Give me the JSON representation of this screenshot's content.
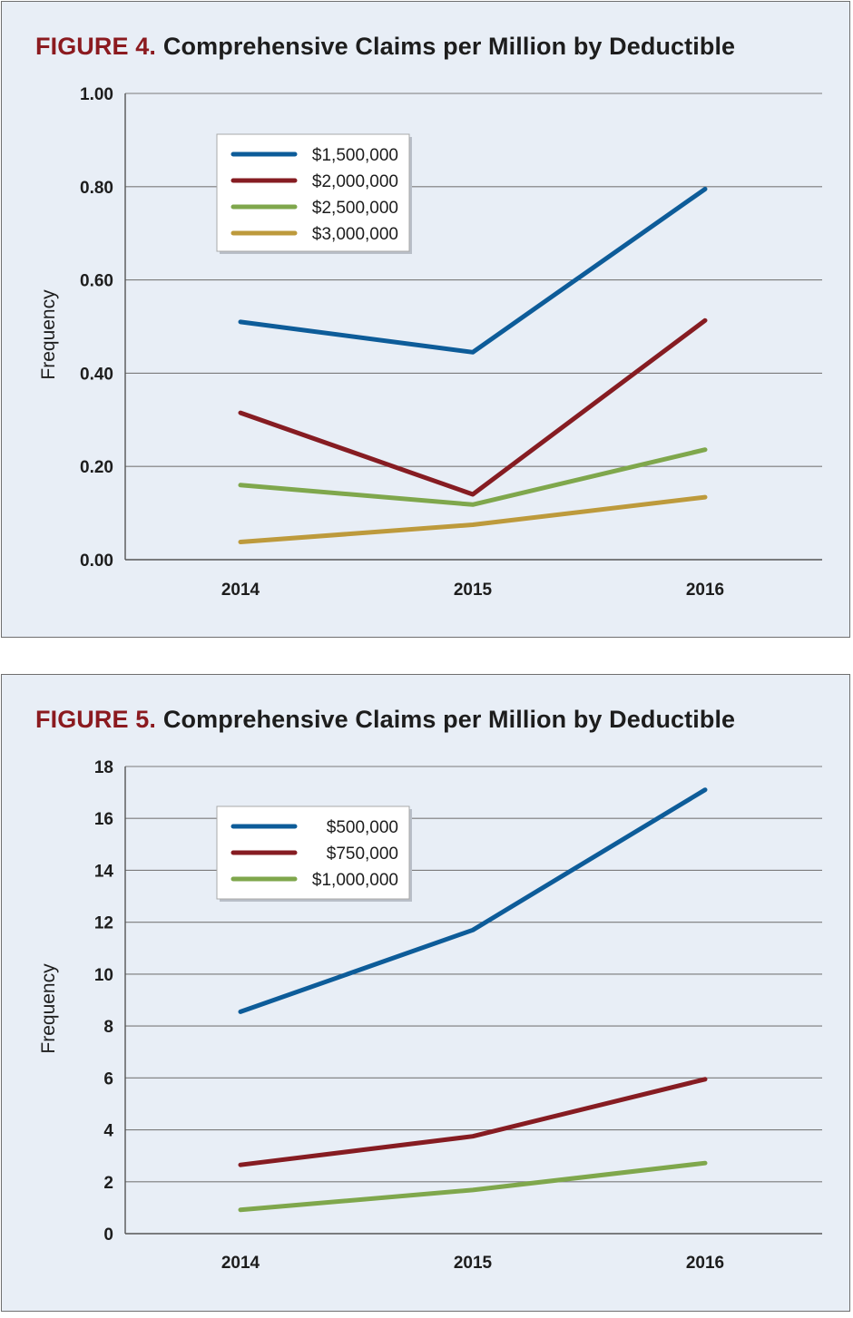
{
  "chart_data": [
    {
      "type": "line",
      "figure_label": "FIGURE 4.",
      "title": "Comprehensive Claims per Million by Deductible",
      "xlabel": "",
      "ylabel": "Frequency",
      "categories": [
        "2014",
        "2015",
        "2016"
      ],
      "ylim": [
        0,
        1
      ],
      "yticks": [
        "0.00",
        "0.20",
        "0.40",
        "0.60",
        "0.80",
        "1.00"
      ],
      "ytick_values": [
        0,
        0.2,
        0.4,
        0.6,
        0.8,
        1.0
      ],
      "grid": true,
      "legend_position": "top-left",
      "series": [
        {
          "name": "$1,500,000",
          "color": "#0d5c99",
          "values": [
            0.51,
            0.445,
            0.795
          ]
        },
        {
          "name": "$2,000,000",
          "color": "#861c22",
          "values": [
            0.315,
            0.14,
            0.513
          ]
        },
        {
          "name": "$2,500,000",
          "color": "#7fa74c",
          "values": [
            0.16,
            0.118,
            0.236
          ]
        },
        {
          "name": "$3,000,000",
          "color": "#bd9a3c",
          "values": [
            0.038,
            0.075,
            0.134
          ]
        }
      ]
    },
    {
      "type": "line",
      "figure_label": "FIGURE 5.",
      "title": "Comprehensive Claims per Million by Deductible",
      "xlabel": "",
      "ylabel": "Frequency",
      "categories": [
        "2014",
        "2015",
        "2016"
      ],
      "ylim": [
        0,
        18
      ],
      "yticks": [
        "0",
        "2",
        "4",
        "6",
        "8",
        "10",
        "12",
        "14",
        "16",
        "18"
      ],
      "ytick_values": [
        0,
        2,
        4,
        6,
        8,
        10,
        12,
        14,
        16,
        18
      ],
      "grid": true,
      "legend_position": "top-left",
      "series": [
        {
          "name": "$500,000",
          "color": "#0d5c99",
          "values": [
            8.55,
            11.7,
            17.1
          ]
        },
        {
          "name": "$750,000",
          "color": "#861c22",
          "values": [
            2.65,
            3.75,
            5.95
          ]
        },
        {
          "name": "$1,000,000",
          "color": "#7fa74c",
          "values": [
            0.92,
            1.68,
            2.72
          ]
        }
      ]
    }
  ]
}
